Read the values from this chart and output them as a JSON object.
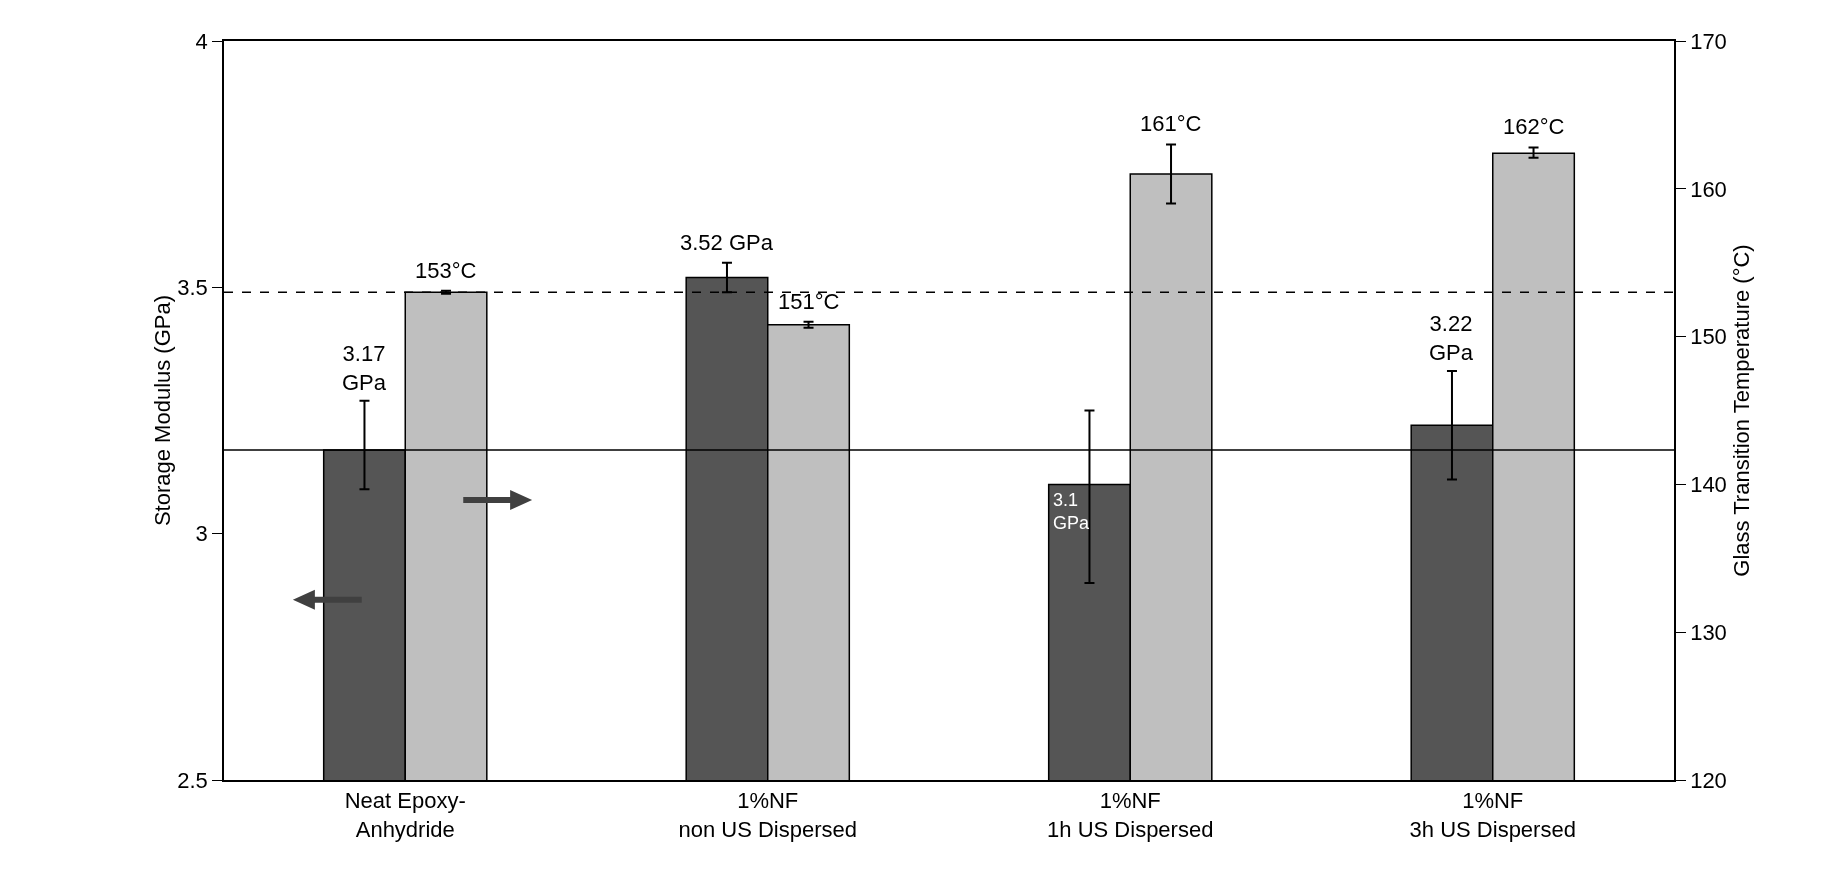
{
  "chart_data": {
    "type": "bar",
    "categories": [
      "Neat Epoxy-\nAnhydride",
      "1%NF\nnon US Dispersed",
      "1%NF\n1h US Dispersed",
      "1%NF\n3h US Dispersed"
    ],
    "ylabel": "Storage Modulus (GPa)",
    "y2label": "Glass Transition Temperature (°C)",
    "series": [
      {
        "color": "#555555",
        "values": [
          3.17,
          3.52,
          3.1,
          3.22
        ],
        "errors": [
          [
            3.09,
            3.27
          ],
          [
            3.49,
            3.55
          ],
          [
            2.9,
            3.25
          ],
          [
            3.11,
            3.33
          ]
        ],
        "value_labels": [
          "3.17 GPa",
          "3.52 GPa",
          "3.1 GPa",
          "3.22 GPa"
        ]
      },
      {
        "color": "#bfbfbf",
        "axis": "y2",
        "values": [
          153,
          150.8,
          161,
          162.4
        ],
        "errors": [
          [
            152.9,
            153.1
          ],
          [
            150.6,
            151.0
          ],
          [
            159,
            163
          ],
          [
            162.1,
            162.8
          ]
        ],
        "value_labels": [
          "153°C",
          "151°C",
          "161°C",
          "162°C"
        ]
      }
    ],
    "ylim": [
      2.5,
      4
    ],
    "yticks": [
      2.5,
      3,
      3.5,
      4
    ],
    "y2lim": [
      120,
      170
    ],
    "y2ticks": [
      120,
      130,
      140,
      150,
      160,
      170
    ],
    "ref_lines": [
      {
        "axis": "y",
        "value": 3.17,
        "color": "#000000",
        "line_style": "solid"
      },
      {
        "axis": "y2",
        "value": 153,
        "color": "#000000",
        "line_style": "dashed"
      }
    ],
    "grid": false
  }
}
